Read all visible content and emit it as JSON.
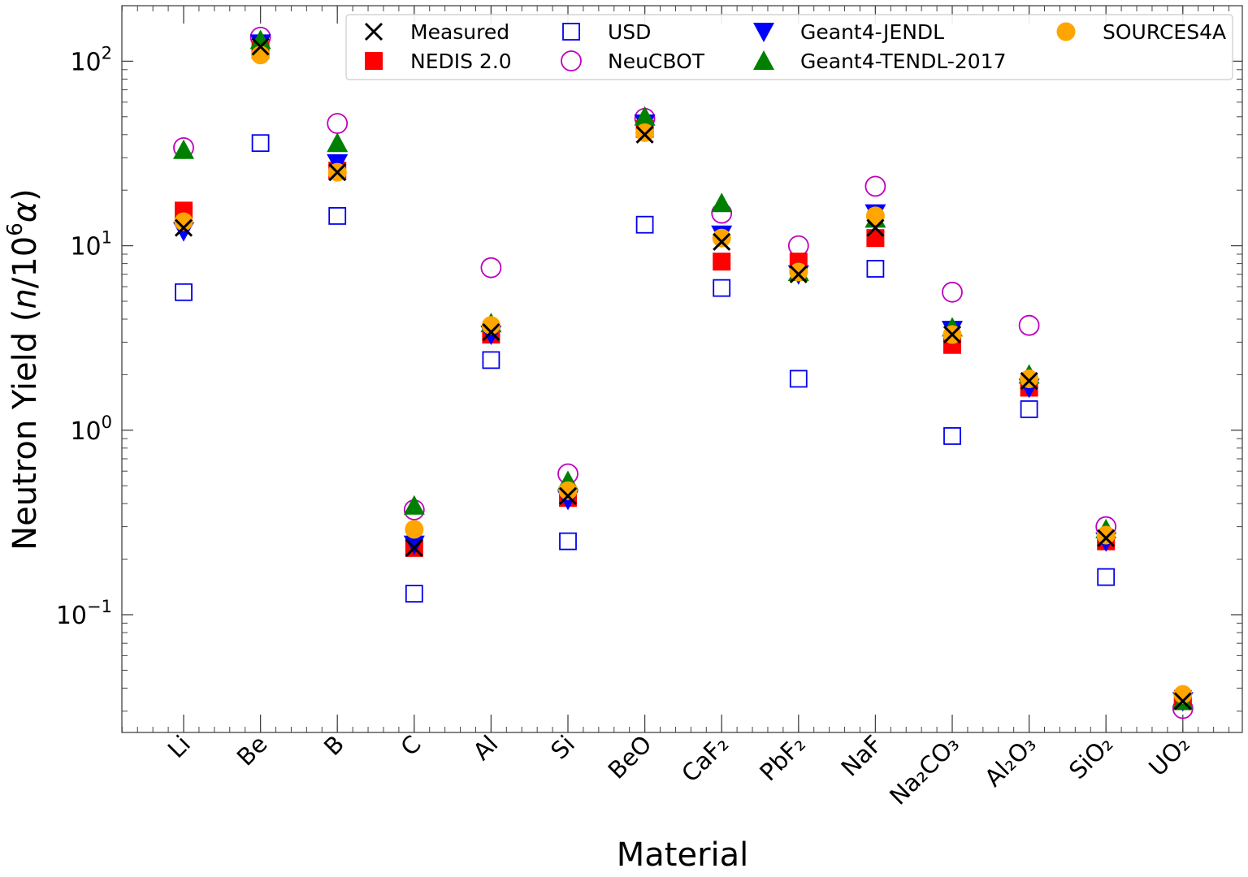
{
  "chart_data": {
    "type": "scatter",
    "title": "",
    "xlabel": "Material",
    "ylabel": "Neutron Yield (n/10⁶α)",
    "yscale": "log",
    "ylim": [
      0.023,
      200
    ],
    "y_ticks": [
      {
        "value": 0.1,
        "base": "10",
        "exp": "−1"
      },
      {
        "value": 1,
        "base": "10",
        "exp": "0"
      },
      {
        "value": 10,
        "base": "10",
        "exp": "1"
      },
      {
        "value": 100,
        "base": "10",
        "exp": "2"
      }
    ],
    "categories": [
      "Li",
      "Be",
      "B",
      "C",
      "Al",
      "Si",
      "BeO",
      "CaF₂",
      "PbF₂",
      "NaF",
      "Na₂CO₃",
      "Al₂O₃",
      "SiO₂",
      "UO₂"
    ],
    "legend_position": "top-right",
    "series": [
      {
        "name": "USD",
        "marker": "square-open",
        "color": "#0000ee",
        "values": [
          5.6,
          36,
          14.5,
          0.13,
          2.4,
          0.25,
          13,
          5.9,
          1.9,
          7.5,
          0.93,
          1.3,
          0.16,
          0.035
        ]
      },
      {
        "name": "NeuCBOT",
        "marker": "circle-open",
        "color": "#bf00bf",
        "values": [
          34,
          135,
          46,
          0.37,
          7.6,
          0.58,
          49,
          15,
          10,
          21,
          5.6,
          3.7,
          0.3,
          0.031
        ]
      },
      {
        "name": "NEDIS 2.0",
        "marker": "square",
        "color": "#ff0000",
        "values": [
          15.5,
          115,
          25.5,
          0.23,
          3.3,
          0.43,
          43,
          8.2,
          8.2,
          11,
          2.9,
          1.7,
          0.25,
          0.034
        ]
      },
      {
        "name": "Geant4-JENDL",
        "marker": "triangle-down",
        "color": "#0000ff",
        "values": [
          12,
          125,
          28,
          0.24,
          3.3,
          0.42,
          46,
          11.5,
          7,
          15,
          3.5,
          1.7,
          0.25,
          0.034
        ]
      },
      {
        "name": "Geant4-TENDL-2017",
        "marker": "triangle-up",
        "color": "#008000",
        "values": [
          33,
          130,
          36,
          0.39,
          3.8,
          0.53,
          50,
          17,
          7.2,
          14,
          3.6,
          2,
          0.29,
          0.034
        ]
      },
      {
        "name": "SOURCES4A",
        "marker": "circle",
        "color": "#ffa500",
        "values": [
          13.5,
          108,
          25,
          0.29,
          3.7,
          0.47,
          41,
          11,
          7.2,
          14.5,
          3.3,
          1.9,
          0.27,
          0.037
        ]
      },
      {
        "name": "Measured",
        "marker": "x",
        "color": "#000000",
        "values": [
          12.5,
          120,
          25,
          0.23,
          3.4,
          0.44,
          40,
          10.5,
          7,
          12.5,
          3.3,
          1.85,
          0.26,
          0.034
        ]
      }
    ],
    "legend_order": [
      "Measured",
      "USD",
      "Geant4-JENDL",
      "SOURCES4A",
      "NEDIS 2.0",
      "NeuCBOT",
      "Geant4-TENDL-2017"
    ]
  }
}
